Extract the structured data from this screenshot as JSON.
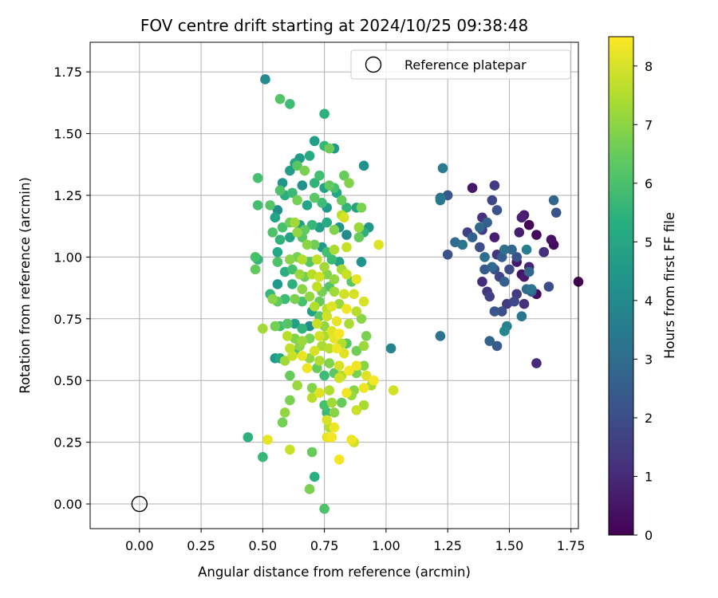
{
  "chart_data": {
    "type": "scatter",
    "title": "FOV centre drift starting at 2024/10/25 09:38:48",
    "xlabel": "Angular distance from reference (arcmin)",
    "ylabel": "Rotation from reference (arcmin)",
    "xlim": [
      -0.2,
      1.78
    ],
    "ylim": [
      -0.1,
      1.87
    ],
    "xticks": [
      "0.00",
      "0.25",
      "0.50",
      "0.75",
      "1.00",
      "1.25",
      "1.50",
      "1.75"
    ],
    "yticks": [
      "0.00",
      "0.25",
      "0.50",
      "0.75",
      "1.00",
      "1.25",
      "1.50",
      "1.75"
    ],
    "grid": true,
    "legend": {
      "position": "top-right",
      "entries": [
        "Reference platepar"
      ]
    },
    "reference_point": {
      "x": 0.0,
      "y": 0.0
    },
    "colorbar": {
      "label": "Hours from first FF file",
      "range": [
        0,
        8.5
      ],
      "ticks": [
        "0",
        "1",
        "2",
        "3",
        "4",
        "5",
        "6",
        "7",
        "8"
      ],
      "colormap": "viridis"
    },
    "points": [
      [
        1.78,
        0.9,
        0.05
      ],
      [
        1.68,
        1.05,
        0.3
      ],
      [
        1.67,
        1.07,
        0.4
      ],
      [
        1.64,
        1.02,
        0.5
      ],
      [
        1.61,
        1.09,
        0.2
      ],
      [
        1.58,
        1.13,
        0.1
      ],
      [
        1.56,
        1.17,
        0.6
      ],
      [
        1.55,
        1.16,
        0.8
      ],
      [
        1.54,
        1.1,
        0.7
      ],
      [
        1.53,
        0.98,
        0.5
      ],
      [
        1.55,
        0.93,
        0.4
      ],
      [
        1.56,
        0.92,
        0.6
      ],
      [
        1.58,
        0.96,
        0.9
      ],
      [
        1.61,
        0.85,
        0.3
      ],
      [
        1.61,
        0.57,
        1.0
      ],
      [
        1.56,
        0.81,
        1.2
      ],
      [
        1.53,
        0.85,
        1.5
      ],
      [
        1.52,
        0.82,
        1.8
      ],
      [
        1.49,
        0.81,
        1.4
      ],
      [
        1.47,
        0.78,
        2.0
      ],
      [
        1.44,
        0.78,
        2.3
      ],
      [
        1.42,
        0.84,
        1.6
      ],
      [
        1.41,
        0.86,
        1.3
      ],
      [
        1.39,
        0.9,
        1.1
      ],
      [
        1.4,
        0.95,
        2.4
      ],
      [
        1.44,
        0.95,
        2.1
      ],
      [
        1.46,
        0.92,
        1.7
      ],
      [
        1.48,
        0.9,
        2.6
      ],
      [
        1.5,
        0.95,
        1.9
      ],
      [
        1.53,
        1.0,
        2.2
      ],
      [
        1.51,
        1.03,
        2.8
      ],
      [
        1.47,
        1.0,
        2.5
      ],
      [
        1.45,
        1.01,
        1.3
      ],
      [
        1.43,
        0.96,
        2.9
      ],
      [
        1.4,
        1.0,
        3.1
      ],
      [
        1.38,
        1.04,
        2.0
      ],
      [
        1.35,
        1.08,
        2.7
      ],
      [
        1.33,
        1.1,
        1.6
      ],
      [
        1.31,
        1.05,
        3.3
      ],
      [
        1.28,
        1.06,
        3.0
      ],
      [
        1.25,
        1.01,
        2.1
      ],
      [
        1.25,
        1.25,
        2.3
      ],
      [
        1.22,
        1.23,
        3.4
      ],
      [
        1.22,
        1.24,
        3.2
      ],
      [
        1.23,
        1.36,
        3.5
      ],
      [
        1.35,
        1.28,
        0.5
      ],
      [
        1.43,
        1.23,
        1.8
      ],
      [
        1.44,
        1.29,
        1.5
      ],
      [
        1.45,
        1.19,
        2.2
      ],
      [
        1.39,
        1.16,
        1.2
      ],
      [
        1.41,
        1.14,
        2.6
      ],
      [
        1.39,
        1.11,
        1.4
      ],
      [
        1.38,
        1.12,
        2.9
      ],
      [
        1.44,
        1.08,
        0.7
      ],
      [
        1.48,
        1.03,
        3.1
      ],
      [
        1.57,
        1.03,
        3.6
      ],
      [
        1.58,
        0.94,
        2.8
      ],
      [
        1.59,
        0.86,
        2.5
      ],
      [
        1.57,
        0.87,
        3.0
      ],
      [
        1.59,
        0.87,
        3.3
      ],
      [
        1.55,
        0.76,
        3.4
      ],
      [
        1.49,
        0.72,
        3.7
      ],
      [
        1.48,
        0.7,
        3.9
      ],
      [
        1.45,
        0.64,
        2.4
      ],
      [
        1.42,
        0.66,
        2.7
      ],
      [
        1.22,
        0.68,
        3.2
      ],
      [
        1.02,
        0.63,
        3.8
      ],
      [
        1.68,
        1.23,
        2.8
      ],
      [
        1.69,
        1.18,
        2.2
      ],
      [
        1.66,
        0.88,
        2.0
      ],
      [
        1.64,
        1.02,
        1.2
      ],
      [
        0.51,
        1.72,
        4.0
      ],
      [
        0.57,
        1.64,
        6.2
      ],
      [
        0.61,
        1.62,
        5.8
      ],
      [
        0.75,
        1.58,
        5.4
      ],
      [
        0.71,
        1.47,
        4.8
      ],
      [
        0.75,
        1.45,
        5.6
      ],
      [
        0.77,
        1.44,
        6.6
      ],
      [
        0.79,
        1.44,
        4.5
      ],
      [
        0.69,
        1.41,
        5.2
      ],
      [
        0.65,
        1.4,
        4.6
      ],
      [
        0.63,
        1.38,
        5.0
      ],
      [
        0.64,
        1.37,
        6.3
      ],
      [
        0.61,
        1.35,
        4.7
      ],
      [
        0.67,
        1.35,
        6.8
      ],
      [
        0.71,
        1.3,
        5.5
      ],
      [
        0.73,
        1.33,
        5.9
      ],
      [
        0.75,
        1.28,
        4.9
      ],
      [
        0.77,
        1.29,
        6.4
      ],
      [
        0.79,
        1.28,
        6.0
      ],
      [
        0.83,
        1.33,
        6.5
      ],
      [
        0.85,
        1.3,
        6.9
      ],
      [
        0.91,
        1.37,
        4.3
      ],
      [
        0.58,
        1.3,
        4.4
      ],
      [
        0.59,
        1.25,
        5.3
      ],
      [
        0.57,
        1.27,
        6.1
      ],
      [
        0.62,
        1.26,
        5.7
      ],
      [
        0.66,
        1.29,
        4.2
      ],
      [
        0.64,
        1.23,
        6.7
      ],
      [
        0.68,
        1.21,
        5.0
      ],
      [
        0.71,
        1.24,
        6.3
      ],
      [
        0.74,
        1.22,
        5.8
      ],
      [
        0.76,
        1.2,
        4.6
      ],
      [
        0.8,
        1.26,
        5.1
      ],
      [
        0.82,
        1.23,
        6.5
      ],
      [
        0.84,
        1.2,
        5.5
      ],
      [
        0.88,
        1.2,
        4.9
      ],
      [
        0.9,
        1.2,
        6.8
      ],
      [
        0.82,
        1.17,
        7.6
      ],
      [
        0.83,
        1.16,
        8.0
      ],
      [
        0.48,
        1.21,
        5.9
      ],
      [
        0.53,
        1.21,
        6.2
      ],
      [
        0.56,
        1.19,
        4.1
      ],
      [
        0.55,
        1.16,
        5.0
      ],
      [
        0.58,
        1.12,
        6.0
      ],
      [
        0.61,
        1.14,
        6.6
      ],
      [
        0.63,
        1.14,
        7.3
      ],
      [
        0.65,
        1.13,
        4.8
      ],
      [
        0.67,
        1.11,
        6.4
      ],
      [
        0.7,
        1.13,
        5.6
      ],
      [
        0.73,
        1.12,
        4.7
      ],
      [
        0.76,
        1.14,
        5.2
      ],
      [
        0.79,
        1.11,
        6.9
      ],
      [
        0.81,
        1.12,
        4.4
      ],
      [
        0.84,
        1.09,
        4.0
      ],
      [
        0.89,
        1.12,
        7.2
      ],
      [
        0.91,
        1.1,
        5.4
      ],
      [
        0.93,
        1.12,
        4.5
      ],
      [
        0.89,
        1.08,
        6.5
      ],
      [
        0.54,
        1.1,
        6.1
      ],
      [
        0.57,
        1.07,
        5.5
      ],
      [
        0.61,
        1.08,
        4.9
      ],
      [
        0.64,
        1.1,
        7.1
      ],
      [
        0.66,
        1.08,
        6.3
      ],
      [
        0.68,
        1.05,
        7.0
      ],
      [
        0.71,
        1.05,
        6.6
      ],
      [
        0.74,
        1.04,
        4.6
      ],
      [
        0.76,
        1.02,
        5.9
      ],
      [
        0.79,
        1.03,
        7.4
      ],
      [
        0.84,
        1.04,
        7.8
      ],
      [
        0.97,
        1.05,
        8.1
      ],
      [
        0.47,
        1.0,
        6.0
      ],
      [
        0.48,
        0.99,
        5.5
      ],
      [
        0.56,
        1.02,
        5.1
      ],
      [
        0.61,
        0.99,
        7.0
      ],
      [
        0.64,
        1.0,
        6.7
      ],
      [
        0.66,
        0.99,
        7.5
      ],
      [
        0.69,
        0.98,
        6.2
      ],
      [
        0.72,
        0.99,
        7.7
      ],
      [
        0.75,
        0.96,
        7.3
      ],
      [
        0.78,
        0.99,
        5.7
      ],
      [
        0.81,
        0.98,
        4.8
      ],
      [
        0.9,
        0.98,
        4.3
      ],
      [
        0.47,
        0.95,
        6.4
      ],
      [
        0.56,
        0.98,
        6.1
      ],
      [
        0.59,
        0.94,
        5.3
      ],
      [
        0.62,
        0.95,
        6.0
      ],
      [
        0.65,
        0.93,
        7.2
      ],
      [
        0.67,
        0.92,
        6.6
      ],
      [
        0.7,
        0.93,
        7.6
      ],
      [
        0.73,
        0.92,
        7.9
      ],
      [
        0.76,
        0.93,
        6.9
      ],
      [
        0.79,
        0.91,
        7.1
      ],
      [
        0.82,
        0.95,
        7.4
      ],
      [
        0.84,
        0.93,
        7.8
      ],
      [
        0.86,
        0.9,
        6.3
      ],
      [
        0.88,
        0.91,
        8.2
      ],
      [
        0.56,
        0.89,
        4.5
      ],
      [
        0.62,
        0.89,
        5.4
      ],
      [
        0.66,
        0.87,
        7.0
      ],
      [
        0.72,
        0.88,
        7.7
      ],
      [
        0.74,
        0.86,
        6.7
      ],
      [
        0.77,
        0.88,
        6.2
      ],
      [
        0.79,
        0.86,
        7.3
      ],
      [
        0.83,
        0.85,
        7.9
      ],
      [
        0.87,
        0.85,
        8.0
      ],
      [
        0.53,
        0.85,
        5.6
      ],
      [
        0.54,
        0.83,
        7.0
      ],
      [
        0.56,
        0.82,
        6.4
      ],
      [
        0.59,
        0.83,
        5.8
      ],
      [
        0.63,
        0.83,
        6.8
      ],
      [
        0.66,
        0.82,
        6.0
      ],
      [
        0.69,
        0.84,
        7.1
      ],
      [
        0.71,
        0.8,
        7.5
      ],
      [
        0.73,
        0.82,
        6.5
      ],
      [
        0.76,
        0.79,
        7.6
      ],
      [
        0.78,
        0.8,
        8.1
      ],
      [
        0.81,
        0.81,
        7.2
      ],
      [
        0.84,
        0.79,
        8.3
      ],
      [
        0.88,
        0.78,
        7.6
      ],
      [
        0.91,
        0.82,
        8.0
      ],
      [
        0.7,
        0.78,
        4.8
      ],
      [
        0.73,
        0.76,
        6.3
      ],
      [
        0.76,
        0.76,
        7.9
      ],
      [
        0.8,
        0.74,
        8.2
      ],
      [
        0.85,
        0.73,
        7.4
      ],
      [
        0.9,
        0.75,
        7.0
      ],
      [
        0.55,
        0.72,
        6.7
      ],
      [
        0.57,
        0.72,
        5.9
      ],
      [
        0.6,
        0.73,
        6.2
      ],
      [
        0.63,
        0.73,
        4.8
      ],
      [
        0.66,
        0.71,
        5.5
      ],
      [
        0.69,
        0.72,
        4.1
      ],
      [
        0.72,
        0.73,
        7.8
      ],
      [
        0.75,
        0.72,
        7.1
      ],
      [
        0.78,
        0.7,
        8.1
      ],
      [
        0.81,
        0.69,
        8.4
      ],
      [
        0.5,
        0.71,
        7.3
      ],
      [
        0.6,
        0.68,
        7.6
      ],
      [
        0.63,
        0.67,
        6.9
      ],
      [
        0.66,
        0.66,
        7.2
      ],
      [
        0.69,
        0.67,
        6.8
      ],
      [
        0.73,
        0.68,
        7.9
      ],
      [
        0.75,
        0.68,
        7.4
      ],
      [
        0.79,
        0.67,
        8.2
      ],
      [
        0.82,
        0.65,
        7.5
      ],
      [
        0.84,
        0.65,
        6.3
      ],
      [
        0.88,
        0.62,
        6.6
      ],
      [
        0.91,
        0.64,
        7.2
      ],
      [
        0.92,
        0.68,
        6.8
      ],
      [
        0.61,
        0.63,
        7.7
      ],
      [
        0.63,
        0.62,
        6.1
      ],
      [
        0.65,
        0.64,
        7.0
      ],
      [
        0.71,
        0.62,
        8.0
      ],
      [
        0.74,
        0.64,
        7.4
      ],
      [
        0.77,
        0.63,
        7.6
      ],
      [
        0.8,
        0.63,
        8.3
      ],
      [
        0.83,
        0.61,
        8.1
      ],
      [
        0.55,
        0.59,
        4.6
      ],
      [
        0.57,
        0.59,
        5.1
      ],
      [
        0.59,
        0.58,
        7.3
      ],
      [
        0.62,
        0.6,
        7.8
      ],
      [
        0.66,
        0.6,
        8.2
      ],
      [
        0.69,
        0.59,
        7.1
      ],
      [
        0.73,
        0.58,
        7.5
      ],
      [
        0.77,
        0.57,
        6.9
      ],
      [
        0.81,
        0.56,
        8.0
      ],
      [
        0.88,
        0.56,
        8.3
      ],
      [
        0.91,
        0.56,
        7.0
      ],
      [
        0.68,
        0.55,
        8.3
      ],
      [
        0.72,
        0.55,
        6.5
      ],
      [
        0.75,
        0.52,
        5.8
      ],
      [
        0.79,
        0.53,
        6.3
      ],
      [
        0.82,
        0.52,
        7.6
      ],
      [
        0.85,
        0.54,
        8.4
      ],
      [
        0.88,
        0.53,
        6.8
      ],
      [
        0.92,
        0.52,
        8.1
      ],
      [
        0.95,
        0.5,
        8.4
      ],
      [
        0.61,
        0.52,
        6.5
      ],
      [
        0.64,
        0.48,
        7.2
      ],
      [
        0.7,
        0.47,
        6.9
      ],
      [
        0.73,
        0.45,
        8.1
      ],
      [
        0.77,
        0.46,
        7.5
      ],
      [
        0.81,
        0.51,
        7.9
      ],
      [
        0.84,
        0.45,
        8.3
      ],
      [
        0.87,
        0.46,
        7.0
      ],
      [
        0.91,
        0.47,
        8.3
      ],
      [
        0.94,
        0.48,
        7.4
      ],
      [
        1.03,
        0.46,
        7.9
      ],
      [
        0.61,
        0.42,
        6.8
      ],
      [
        0.7,
        0.43,
        7.6
      ],
      [
        0.75,
        0.4,
        6.0
      ],
      [
        0.78,
        0.41,
        7.3
      ],
      [
        0.82,
        0.41,
        6.5
      ],
      [
        0.86,
        0.44,
        7.2
      ],
      [
        0.88,
        0.38,
        7.8
      ],
      [
        0.91,
        0.4,
        7.4
      ],
      [
        0.59,
        0.37,
        7.1
      ],
      [
        0.58,
        0.33,
        6.7
      ],
      [
        0.76,
        0.37,
        5.7
      ],
      [
        0.79,
        0.37,
        7.0
      ],
      [
        0.76,
        0.34,
        8.0
      ],
      [
        0.77,
        0.31,
        7.5
      ],
      [
        0.79,
        0.31,
        8.3
      ],
      [
        0.76,
        0.27,
        8.2
      ],
      [
        0.78,
        0.27,
        8.4
      ],
      [
        0.86,
        0.26,
        8.3
      ],
      [
        0.87,
        0.25,
        7.9
      ],
      [
        0.44,
        0.27,
        5.4
      ],
      [
        0.52,
        0.26,
        8.2
      ],
      [
        0.61,
        0.22,
        7.8
      ],
      [
        0.7,
        0.21,
        6.5
      ],
      [
        0.81,
        0.18,
        8.4
      ],
      [
        0.5,
        0.19,
        5.6
      ],
      [
        0.71,
        0.11,
        5.3
      ],
      [
        0.69,
        0.06,
        6.8
      ],
      [
        0.75,
        -0.02,
        6.1
      ],
      [
        0.48,
        1.32,
        6.0
      ]
    ]
  }
}
